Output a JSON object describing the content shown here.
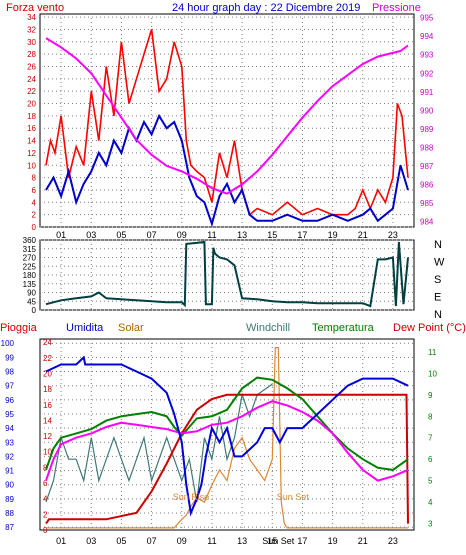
{
  "header": {
    "left_label": "Forza vento",
    "title": "24 hour graph day : 22 Dicembre 2019",
    "right_label": "Pressione"
  },
  "colors": {
    "wind": "#ff0000",
    "gust_avg": "#0000cc",
    "pressure": "#ff00ff",
    "direction": "#004040",
    "rain": "#cc0000",
    "humidity": "#0000dd",
    "solar": "#dd8833",
    "windchill": "#407878",
    "temperature": "#008000",
    "dewpoint": "#ff00ff",
    "grid": "#808080",
    "axis_left_top": "#cc0000",
    "axis_right_top": "#cc00cc",
    "axis_left_bottom": "#0000cc",
    "axis_right_bottom": "#008000"
  },
  "chart_data": [
    {
      "type": "line",
      "name": "wind_pressure",
      "x_ticks": [
        "01",
        "03",
        "05",
        "07",
        "09",
        "11",
        "13",
        "15",
        "17",
        "19",
        "21",
        "23"
      ],
      "y_left_ticks": [
        "0",
        "2",
        "4",
        "6",
        "8",
        "10",
        "12",
        "14",
        "16",
        "18",
        "20",
        "22",
        "24",
        "26",
        "28",
        "30",
        "32",
        "34"
      ],
      "y_right_ticks": [
        "984",
        "985",
        "986",
        "987",
        "988",
        "989",
        "990",
        "991",
        "992",
        "993",
        "994",
        "995"
      ],
      "ylim_left": [
        0,
        34.5
      ],
      "ylim_right": [
        983.7,
        995.2
      ],
      "series": [
        {
          "key": "wind",
          "x": [
            0,
            0.3,
            0.6,
            1,
            1.5,
            2,
            2.5,
            3,
            3.5,
            4,
            4.5,
            5,
            5.5,
            6,
            6.5,
            7,
            7.5,
            8,
            8.5,
            9,
            9.3,
            9.6,
            10,
            10.5,
            11,
            11.5,
            12,
            12.5,
            13,
            13.5,
            14,
            15,
            16,
            17,
            18,
            19,
            20,
            20.5,
            21,
            21.5,
            22,
            22.5,
            23,
            23.3,
            23.6,
            24
          ],
          "y": [
            10,
            14,
            12,
            18,
            8,
            13,
            10,
            22,
            14,
            26,
            18,
            30,
            20,
            24,
            28,
            32,
            22,
            24,
            30,
            26,
            14,
            10,
            9,
            8,
            4,
            12,
            8,
            14,
            6,
            2,
            3,
            2,
            4,
            2,
            3,
            2,
            2,
            3,
            6,
            3,
            6,
            4,
            8,
            20,
            18,
            8
          ]
        },
        {
          "key": "gust_avg",
          "x": [
            0,
            0.5,
            1,
            1.5,
            2,
            2.5,
            3,
            3.5,
            4,
            4.5,
            5,
            5.5,
            6,
            6.5,
            7,
            7.5,
            8,
            8.5,
            9,
            9.5,
            10,
            10.5,
            11,
            11.5,
            12,
            12.5,
            13,
            13.5,
            14,
            15,
            16,
            17,
            18,
            19,
            20,
            21,
            21.5,
            22,
            22.5,
            23,
            23.5,
            24
          ],
          "y": [
            6,
            8,
            5,
            9,
            4,
            7,
            9,
            12,
            10,
            14,
            12,
            16,
            14,
            17,
            15,
            18,
            16,
            17,
            14,
            8,
            5,
            4,
            0.5,
            5,
            7,
            4,
            6,
            2,
            1,
            1,
            2,
            1,
            1,
            2,
            1,
            2,
            3,
            1,
            2,
            3,
            10,
            6
          ]
        },
        {
          "key": "pressure",
          "x": [
            0,
            1,
            2,
            3,
            4,
            5,
            6,
            7,
            8,
            9,
            10,
            11,
            12,
            13,
            14,
            15,
            16,
            17,
            18,
            19,
            20,
            21,
            22,
            23,
            23.5,
            24
          ],
          "y": [
            993.9,
            993.4,
            992.8,
            992.0,
            990.8,
            989.6,
            988.4,
            987.6,
            987.0,
            986.7,
            986.3,
            985.8,
            985.5,
            986.0,
            986.7,
            987.6,
            988.6,
            989.6,
            990.5,
            991.3,
            991.9,
            992.5,
            992.9,
            993.1,
            993.2,
            993.5
          ]
        }
      ]
    },
    {
      "type": "line",
      "name": "wind_direction",
      "y_left_ticks": [
        "0",
        "45",
        "90",
        "135",
        "180",
        "225",
        "270",
        "315",
        "360"
      ],
      "right_labels": [
        "N",
        "W",
        "S",
        "E",
        "N"
      ],
      "ylim": [
        0,
        360
      ],
      "x": [
        0,
        1,
        2,
        3,
        3.5,
        4,
        5,
        6,
        7,
        8,
        9,
        9.2,
        9.3,
        10,
        10.5,
        10.6,
        11,
        11.1,
        11.2,
        11.5,
        12,
        12.5,
        13,
        14,
        15,
        16,
        17,
        18,
        19,
        20,
        21,
        21.5,
        22,
        22.5,
        23,
        23.2,
        23.4,
        23.7,
        24
      ],
      "y": [
        30,
        50,
        60,
        70,
        90,
        60,
        55,
        50,
        45,
        40,
        40,
        25,
        340,
        345,
        350,
        30,
        30,
        320,
        290,
        270,
        260,
        230,
        60,
        55,
        45,
        40,
        40,
        35,
        35,
        35,
        35,
        20,
        260,
        260,
        270,
        20,
        350,
        30,
        270
      ]
    },
    {
      "type": "line",
      "name": "rain_humidity_solar_temp",
      "legend": [
        "Pioggia",
        "Umidita",
        "Solar",
        "Windchill",
        "Temperatura",
        "Dew Point (°C)"
      ],
      "y_left_ticks": [
        "87",
        "88",
        "89",
        "90",
        "91",
        "92",
        "93",
        "94",
        "95",
        "96",
        "97",
        "98",
        "99",
        "100"
      ],
      "y_right_ticks": [
        "3",
        "4",
        "5",
        "6",
        "7",
        "8",
        "9",
        "10",
        "11"
      ],
      "ylim_left": [
        86.8,
        100.3
      ],
      "ylim_right": [
        2.7,
        11.6
      ],
      "annotations": [
        "Sun Rise",
        "Sun Set"
      ],
      "series": [
        {
          "key": "humidity",
          "x": [
            0,
            1,
            2,
            2.5,
            2.6,
            5,
            6,
            7,
            8,
            8.5,
            9,
            9.3,
            9.6,
            10,
            10.3,
            10.6,
            11,
            11.5,
            12,
            12.5,
            13,
            14,
            14.5,
            15,
            15.5,
            16,
            17,
            18,
            19,
            20,
            21,
            22,
            23,
            24
          ],
          "y": [
            98,
            98.5,
            98.5,
            99,
            98.5,
            98.5,
            98,
            97.5,
            96.5,
            95,
            93,
            90,
            88,
            89,
            90,
            92,
            94,
            93,
            94,
            92,
            92,
            93,
            94,
            94,
            93,
            94,
            94,
            95,
            96,
            97,
            97.5,
            97.5,
            97.5,
            97
          ]
        },
        {
          "key": "temperature",
          "x": [
            0,
            0.5,
            1,
            2,
            3,
            4,
            5,
            6,
            7,
            8,
            8.5,
            9,
            10,
            11,
            12,
            13,
            14,
            15,
            16,
            17,
            18,
            19,
            20,
            21,
            22,
            23,
            24
          ],
          "y": [
            5.5,
            6.5,
            7.0,
            7.2,
            7.4,
            7.8,
            8.0,
            8.1,
            8.2,
            8.0,
            7.5,
            7.1,
            7.9,
            8.0,
            8.3,
            9.3,
            9.8,
            9.7,
            9.3,
            8.8,
            8.0,
            7.2,
            6.5,
            6.0,
            5.6,
            5.5,
            6.0
          ]
        },
        {
          "key": "dewpoint",
          "x": [
            0,
            0.5,
            1,
            2,
            3,
            4,
            5,
            6,
            7,
            8,
            9,
            10,
            11,
            12,
            13,
            14,
            15,
            16,
            17,
            18,
            19,
            20,
            21,
            22,
            23,
            24
          ],
          "y": [
            5.0,
            6.0,
            6.7,
            7.0,
            7.2,
            7.5,
            7.7,
            7.6,
            7.5,
            7.4,
            7.2,
            7.3,
            7.6,
            7.7,
            8.0,
            8.4,
            8.7,
            8.5,
            8.2,
            7.8,
            7.2,
            6.3,
            5.5,
            5.0,
            5.2,
            5.5
          ]
        },
        {
          "key": "windchill",
          "x": [
            0,
            0.5,
            1,
            1.5,
            2,
            2.5,
            3,
            3.5,
            4,
            4.5,
            5,
            5.5,
            6,
            6.5,
            7,
            7.5,
            8,
            8.5,
            9,
            9.5,
            10,
            10.5,
            11,
            11.5,
            12,
            12.5,
            13,
            13.5,
            14,
            15
          ],
          "y": [
            4,
            5,
            7,
            6,
            6,
            5,
            7,
            5,
            6,
            7,
            6,
            5,
            6,
            7,
            5,
            6,
            7,
            6,
            5,
            6,
            4,
            7,
            6,
            8,
            6,
            7,
            9,
            8,
            9,
            9.5
          ]
        },
        {
          "key": "rain",
          "x": [
            0,
            0.2,
            4,
            6,
            7,
            8,
            9,
            10,
            11,
            12,
            13,
            14,
            15,
            16,
            17,
            18,
            19,
            20,
            21,
            22,
            23,
            23.9,
            24
          ],
          "y": [
            3,
            3.2,
            3.2,
            3.5,
            4.5,
            5.8,
            7.2,
            8.3,
            8.8,
            9.0,
            9.0,
            9.0,
            9.0,
            9.0,
            9.0,
            9.0,
            9.0,
            9.0,
            9.0,
            9.0,
            9.0,
            9.0,
            3
          ]
        },
        {
          "key": "solar",
          "x": [
            0,
            8.5,
            9,
            9.3,
            9.6,
            10,
            10.5,
            11,
            11.5,
            12,
            12.5,
            13,
            13.5,
            14,
            14.5,
            15,
            15.2,
            15.4,
            15.6,
            15.8,
            16,
            24
          ],
          "y": [
            2.8,
            2.8,
            3.2,
            3.4,
            3.8,
            4.2,
            4.0,
            4.8,
            5.5,
            5.0,
            6.5,
            7.0,
            6.0,
            5.5,
            5.0,
            6.0,
            11.2,
            11.2,
            4.0,
            3.0,
            2.8,
            2.8
          ]
        }
      ]
    }
  ]
}
